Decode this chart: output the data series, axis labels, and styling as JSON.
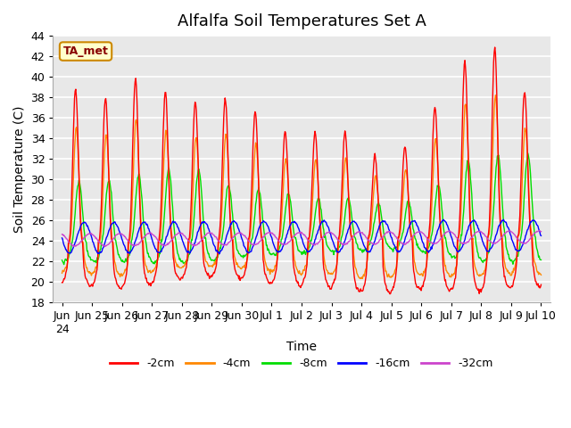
{
  "title": "Alfalfa Soil Temperatures Set A",
  "xlabel": "Time",
  "ylabel": "Soil Temperature (C)",
  "ylim": [
    18,
    44
  ],
  "yticks": [
    18,
    20,
    22,
    24,
    26,
    28,
    30,
    32,
    34,
    36,
    38,
    40,
    42,
    44
  ],
  "line_colors": {
    "-2cm": "#ff0000",
    "-4cm": "#ff8800",
    "-8cm": "#00dd00",
    "-16cm": "#0000ff",
    "-32cm": "#cc44cc"
  },
  "legend_labels": [
    "-2cm",
    "-4cm",
    "-8cm",
    "-16cm",
    "-32cm"
  ],
  "annotation_text": "TA_met",
  "annotation_bg": "#ffffcc",
  "annotation_border": "#cc8800",
  "background_color": "#e8e8e8",
  "grid_color": "#ffffff",
  "title_fontsize": 13,
  "label_fontsize": 10,
  "tick_fontsize": 9
}
